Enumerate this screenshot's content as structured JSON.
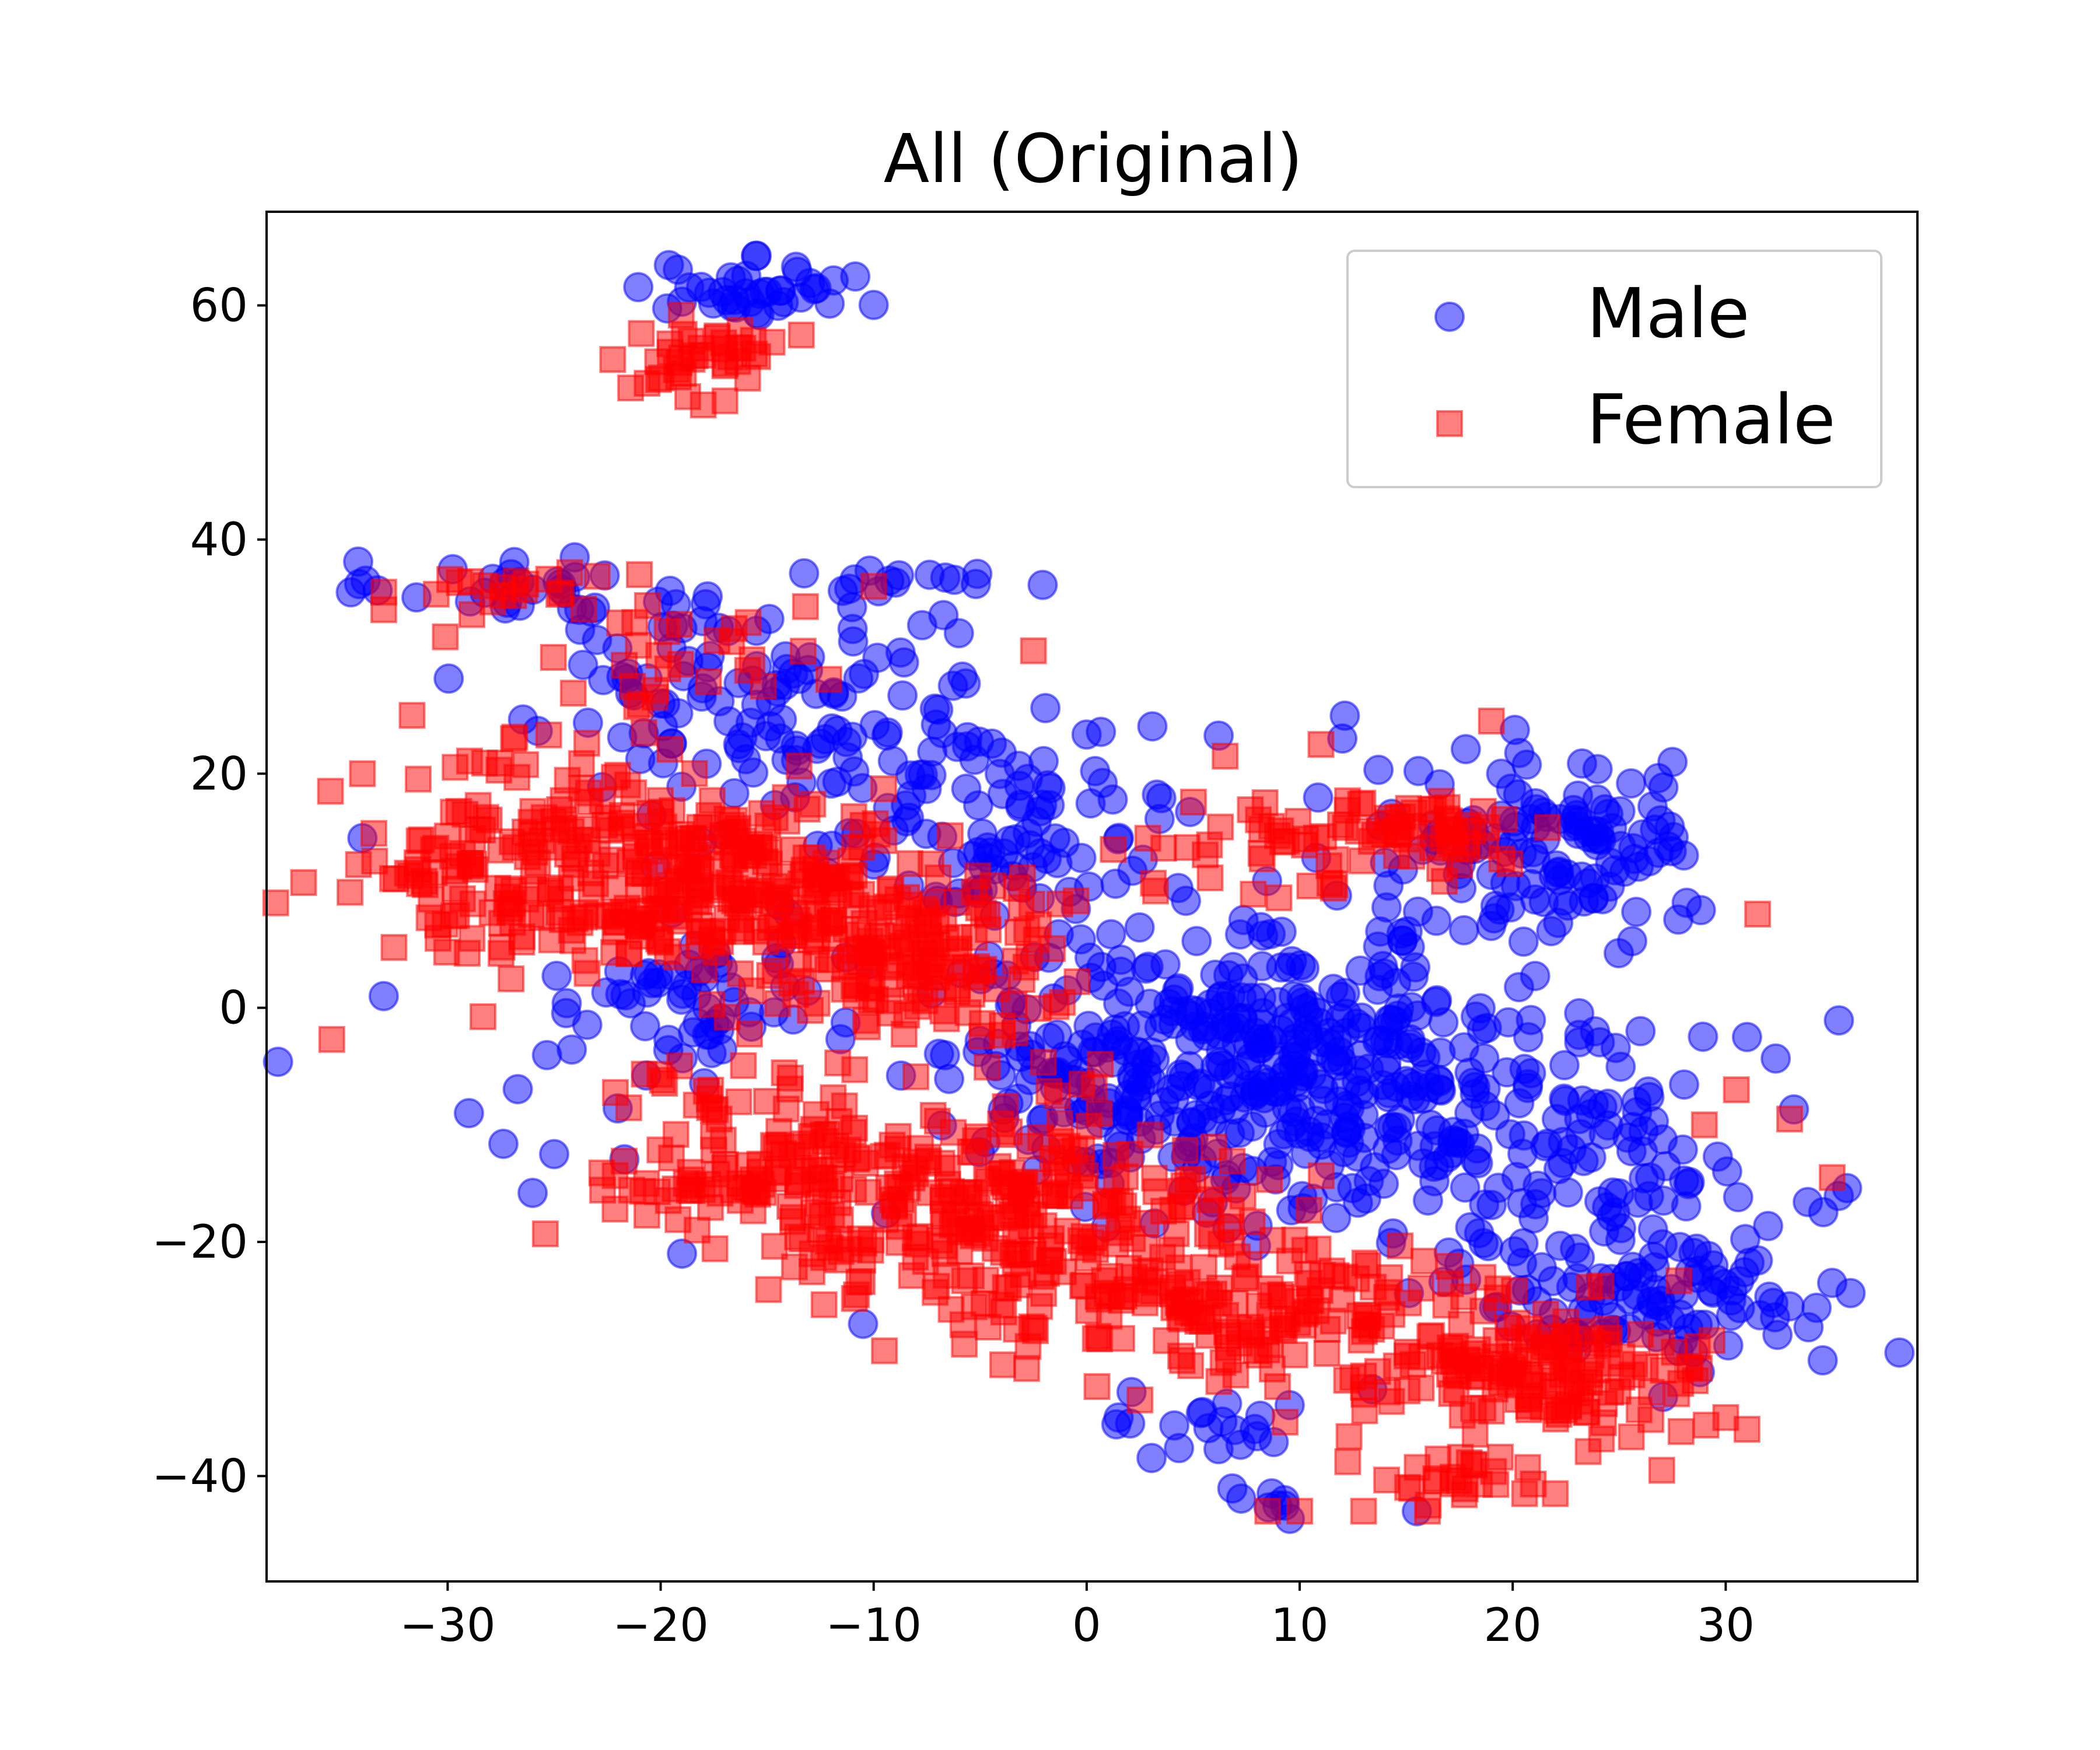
{
  "chart_data": {
    "type": "scatter",
    "title": "All (Original)",
    "xlabel": "",
    "ylabel": "",
    "xlim": [
      -38.5,
      39
    ],
    "ylim": [
      -49,
      68
    ],
    "xticks": [
      -30,
      -20,
      -10,
      0,
      10,
      20,
      30
    ],
    "yticks": [
      -40,
      -20,
      0,
      20,
      40,
      60
    ],
    "xtick_labels": [
      "−30",
      "−20",
      "−10",
      "0",
      "10",
      "20",
      "30"
    ],
    "ytick_labels": [
      "−40",
      "−20",
      "0",
      "20",
      "40",
      "60"
    ],
    "grid": false,
    "legend_position": "top-right",
    "series": [
      {
        "name": "Male",
        "marker": "circle",
        "color": "#0000ff",
        "alpha": 0.5,
        "clusters": [
          {
            "cx": -15.5,
            "cy": 61,
            "sx": 2.5,
            "sy": 1.2,
            "n": 40
          },
          {
            "cx": -26,
            "cy": 36,
            "sx": 4.5,
            "sy": 1.2,
            "n": 28
          },
          {
            "cx": -9,
            "cy": 36.5,
            "sx": 2.5,
            "sy": 1,
            "n": 14
          },
          {
            "cx": -14,
            "cy": 27,
            "sx": 6,
            "sy": 5,
            "n": 120
          },
          {
            "cx": -7,
            "cy": 18,
            "sx": 4,
            "sy": 5,
            "n": 50
          },
          {
            "cx": -3,
            "cy": 12,
            "sx": 3,
            "sy": 3,
            "n": 40
          },
          {
            "cx": -18,
            "cy": 0,
            "sx": 3.5,
            "sy": 3,
            "n": 60
          },
          {
            "cx": 5,
            "cy": -5,
            "sx": 6,
            "sy": 6,
            "n": 320
          },
          {
            "cx": 14,
            "cy": -3,
            "sx": 5,
            "sy": 5,
            "n": 120
          },
          {
            "cx": 22,
            "cy": 14,
            "sx": 3.5,
            "sy": 4,
            "n": 120
          },
          {
            "cx": 22,
            "cy": -14,
            "sx": 6,
            "sy": 6,
            "n": 150
          },
          {
            "cx": 28,
            "cy": -25,
            "sx": 3.5,
            "sy": 3,
            "n": 80
          },
          {
            "cx": 6,
            "cy": -36,
            "sx": 2.5,
            "sy": 1.5,
            "n": 20
          },
          {
            "cx": 9,
            "cy": -42,
            "sx": 1.5,
            "sy": 1,
            "n": 8
          },
          {
            "cx": -24,
            "cy": -6,
            "sx": 5,
            "sy": 8,
            "n": 10
          },
          {
            "cx": 0,
            "cy": 20,
            "sx": 12,
            "sy": 5,
            "n": 25
          }
        ],
        "points": [
          [
            -34,
            14.5
          ],
          [
            -33,
            1
          ],
          [
            -29,
            -9
          ],
          [
            -25,
            -12.5
          ],
          [
            -19,
            -21
          ],
          [
            -10.5,
            -27
          ],
          [
            1.5,
            -35
          ],
          [
            15.5,
            -43
          ],
          [
            27.5,
            21
          ],
          [
            26,
            -2
          ],
          [
            31,
            -2.5
          ],
          [
            35,
            -23.5
          ],
          [
            33,
            -25.5
          ],
          [
            -20,
            26
          ],
          [
            12,
            23
          ],
          [
            -6,
            32
          ]
        ]
      },
      {
        "name": "Female",
        "marker": "square",
        "color": "#ff0000",
        "alpha": 0.5,
        "clusters": [
          {
            "cx": -18.5,
            "cy": 55.5,
            "sx": 2,
            "sy": 1.5,
            "n": 40
          },
          {
            "cx": -27.5,
            "cy": 36,
            "sx": 2,
            "sy": 1,
            "n": 18
          },
          {
            "cx": -25,
            "cy": 12,
            "sx": 4,
            "sy": 5,
            "n": 200
          },
          {
            "cx": -16,
            "cy": 11,
            "sx": 3.5,
            "sy": 3.5,
            "n": 150
          },
          {
            "cx": -9,
            "cy": 5,
            "sx": 4,
            "sy": 4,
            "n": 180
          },
          {
            "cx": -15,
            "cy": -14,
            "sx": 4,
            "sy": 3,
            "n": 100
          },
          {
            "cx": -4,
            "cy": -17,
            "sx": 5,
            "sy": 5,
            "n": 260
          },
          {
            "cx": 7,
            "cy": -25,
            "sx": 5,
            "sy": 3,
            "n": 150
          },
          {
            "cx": 21,
            "cy": -31,
            "sx": 4,
            "sy": 3,
            "n": 160
          },
          {
            "cx": 16,
            "cy": 15,
            "sx": 3,
            "sy": 2,
            "n": 60
          },
          {
            "cx": 17.5,
            "cy": -40,
            "sx": 2,
            "sy": 1.2,
            "n": 25
          },
          {
            "cx": 8,
            "cy": 14,
            "sx": 3,
            "sy": 3,
            "n": 30
          },
          {
            "cx": -20,
            "cy": 30,
            "sx": 3,
            "sy": 3,
            "n": 30
          },
          {
            "cx": -18,
            "cy": -7,
            "sx": 1.5,
            "sy": 1.2,
            "n": 15
          }
        ],
        "points": [
          [
            -35.5,
            18.5
          ],
          [
            -34,
            20
          ],
          [
            -33,
            34
          ],
          [
            -33,
            35.5
          ],
          [
            -21,
            37
          ],
          [
            -10,
            36
          ],
          [
            -2.5,
            30.5
          ],
          [
            6.5,
            21.5
          ],
          [
            11,
            22.5
          ],
          [
            19,
            24.5
          ],
          [
            31.5,
            8
          ],
          [
            30.5,
            -7
          ],
          [
            29,
            -10
          ],
          [
            33,
            -9.5
          ],
          [
            35,
            -14.5
          ],
          [
            30,
            -35
          ],
          [
            31,
            -36
          ],
          [
            27,
            -39.5
          ],
          [
            22,
            -41.5
          ],
          [
            16,
            -43
          ],
          [
            10,
            -43
          ],
          [
            13,
            -43
          ],
          [
            8.5,
            -43
          ],
          [
            2.5,
            -33.5
          ],
          [
            -18,
            51.5
          ]
        ]
      }
    ]
  }
}
